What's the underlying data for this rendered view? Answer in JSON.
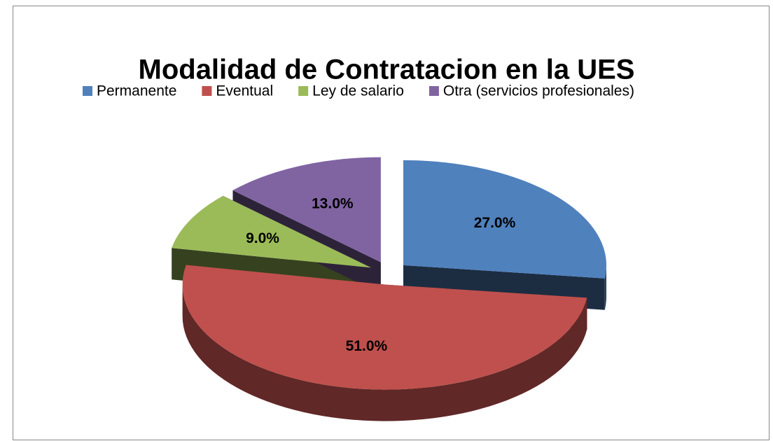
{
  "chart_data": {
    "type": "pie3d",
    "title": "Modalidad de Contratacion en la UES",
    "categories": [
      "Permanente",
      "Eventual",
      "Ley de salario",
      "Otra (servicios profesionales)"
    ],
    "values": [
      27,
      51,
      9,
      13
    ],
    "value_labels": [
      "27.0%",
      "51.0%",
      "9.0%",
      "13.0%"
    ],
    "colors": [
      "#4f81bd",
      "#c0504d",
      "#9bbb59",
      "#8064a2"
    ],
    "legend": "top"
  }
}
